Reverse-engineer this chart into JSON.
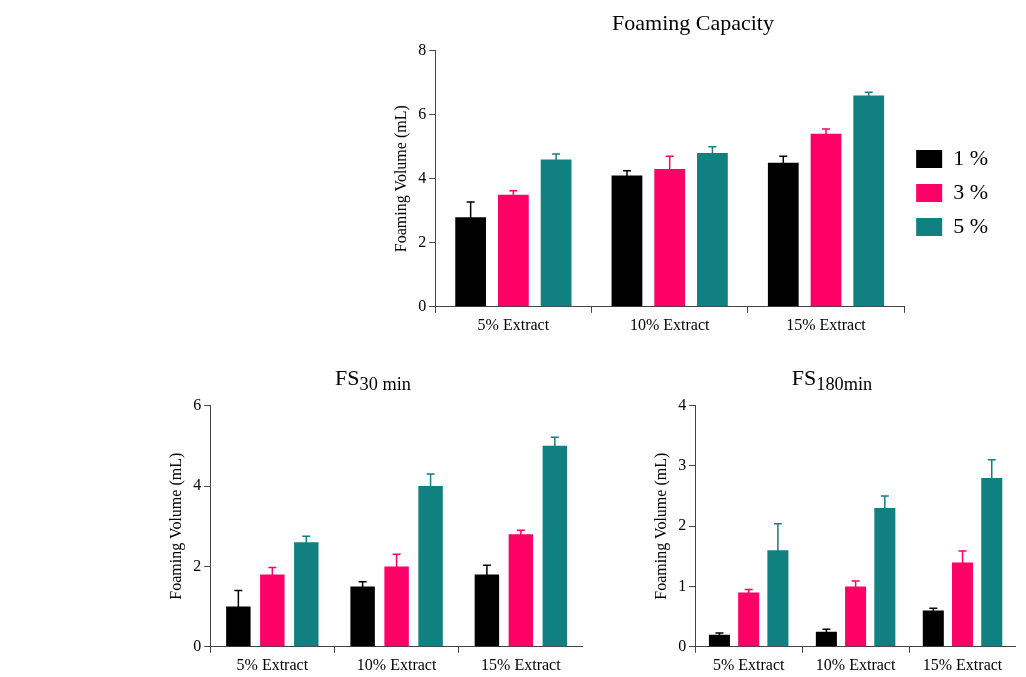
{
  "chart_data": [
    {
      "type": "bar",
      "title": "Foaming Capacity",
      "ylabel": "Foaming Volume (mL)",
      "categories": [
        "5% Extract",
        "10% Extract",
        "15% Extract"
      ],
      "series": [
        {
          "name": "1 %",
          "color": "#000000",
          "values": [
            2.8,
            4.1,
            4.5
          ],
          "errors": [
            0.47,
            0.15,
            0.2
          ]
        },
        {
          "name": "3 %",
          "color": "#ff0066",
          "values": [
            3.5,
            4.3,
            5.4
          ],
          "errors": [
            0.12,
            0.4,
            0.15
          ]
        },
        {
          "name": "5 %",
          "color": "#118080",
          "values": [
            4.6,
            4.8,
            6.6
          ],
          "errors": [
            0.17,
            0.2,
            0.1
          ]
        }
      ],
      "ylim": [
        0,
        8
      ],
      "yticks": [
        0,
        2,
        4,
        6,
        8
      ],
      "grid": false,
      "legend": "right"
    },
    {
      "type": "bar",
      "title": "FS$_{30 min}$",
      "ylabel": "Foaming Volume (mL)",
      "categories": [
        "5% Extract",
        "10% Extract",
        "15% Extract"
      ],
      "series": [
        {
          "color": "#000000",
          "values": [
            1.0,
            1.5,
            1.8
          ],
          "errors": [
            0.4,
            0.12,
            0.23
          ]
        },
        {
          "color": "#ff0066",
          "values": [
            1.8,
            2.0,
            2.8
          ],
          "errors": [
            0.17,
            0.3,
            0.1
          ]
        },
        {
          "color": "#118080",
          "values": [
            2.6,
            4.0,
            5.0
          ],
          "errors": [
            0.15,
            0.3,
            0.21
          ]
        }
      ],
      "ylim": [
        0,
        6
      ],
      "yticks": [
        0,
        2,
        4,
        6
      ],
      "grid": false,
      "legend": false
    },
    {
      "type": "bar",
      "title": "FS$_{180min}$",
      "ylabel": "Foaming Volume (mL)",
      "categories": [
        "5% Extract",
        "10% Extract",
        "15% Extract"
      ],
      "series": [
        {
          "color": "#000000",
          "values": [
            0.2,
            0.25,
            0.6
          ],
          "errors": [
            0.03,
            0.04,
            0.04
          ]
        },
        {
          "color": "#ff0066",
          "values": [
            0.9,
            1.0,
            1.4
          ],
          "errors": [
            0.05,
            0.09,
            0.19
          ]
        },
        {
          "color": "#118080",
          "values": [
            1.6,
            2.3,
            2.8
          ],
          "errors": [
            0.44,
            0.2,
            0.3
          ]
        }
      ],
      "ylim": [
        0,
        4
      ],
      "yticks": [
        0,
        1,
        2,
        3,
        4
      ],
      "grid": false,
      "legend": false
    }
  ]
}
